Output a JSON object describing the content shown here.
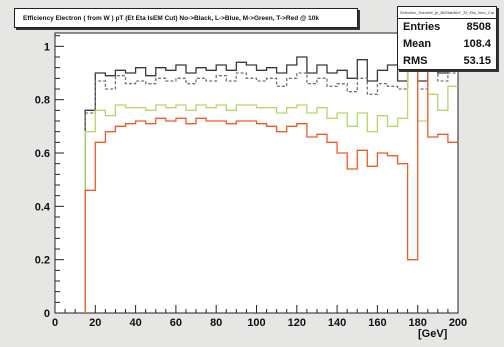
{
  "chart_data": {
    "type": "line",
    "style": "step-histogram",
    "title": "Efficiency Electron ( from W ) pT (Et Eta IsEM Cut) No->Black, L->Blue, M->Green, T->Red @ 10k",
    "xlabel": "[GeV]",
    "ylabel": "",
    "xlim": [
      0,
      200
    ],
    "ylim": [
      0,
      1.05
    ],
    "x_ticks": [
      0,
      20,
      40,
      60,
      80,
      100,
      120,
      140,
      160,
      180,
      200
    ],
    "y_ticks": [
      0,
      0.2,
      0.4,
      0.6,
      0.8,
      1
    ],
    "bin_width": 5,
    "grid": false,
    "x": [
      15,
      20,
      25,
      30,
      35,
      40,
      45,
      50,
      55,
      60,
      65,
      70,
      75,
      80,
      85,
      90,
      95,
      100,
      105,
      110,
      115,
      120,
      125,
      130,
      135,
      140,
      145,
      150,
      155,
      160,
      165,
      170,
      175,
      180,
      185,
      190,
      195
    ],
    "series": [
      {
        "color": "#3a3a3a",
        "dash": "",
        "values": [
          0.76,
          0.9,
          0.89,
          0.91,
          0.9,
          0.92,
          0.89,
          0.92,
          0.91,
          0.93,
          0.9,
          0.92,
          0.91,
          0.93,
          0.91,
          0.94,
          0.93,
          0.91,
          0.92,
          0.9,
          0.93,
          0.96,
          0.9,
          0.93,
          0.9,
          0.91,
          0.88,
          0.95,
          0.87,
          0.91,
          0.93,
          0.87,
          0.97,
          0.87,
          0.95,
          0.9,
          0.92
        ]
      },
      {
        "color": "#6e7380",
        "dash": "3,2",
        "values": [
          0.75,
          0.87,
          0.84,
          0.89,
          0.86,
          0.87,
          0.86,
          0.88,
          0.87,
          0.88,
          0.86,
          0.88,
          0.87,
          0.89,
          0.87,
          0.9,
          0.88,
          0.87,
          0.88,
          0.85,
          0.88,
          0.9,
          0.86,
          0.88,
          0.85,
          0.86,
          0.83,
          0.88,
          0.82,
          0.86,
          0.85,
          0.84,
          0.93,
          0.84,
          0.93,
          0.87,
          0.9
        ]
      },
      {
        "color": "#b6d66a",
        "dash": "",
        "values": [
          0.68,
          0.76,
          0.74,
          0.78,
          0.77,
          0.77,
          0.76,
          0.78,
          0.77,
          0.78,
          0.76,
          0.78,
          0.77,
          0.78,
          0.76,
          0.78,
          0.78,
          0.77,
          0.77,
          0.75,
          0.77,
          0.78,
          0.75,
          0.77,
          0.73,
          0.75,
          0.7,
          0.75,
          0.68,
          0.74,
          0.7,
          0.73,
          0.94,
          0.72,
          0.82,
          0.76,
          0.85
        ]
      },
      {
        "color": "#f05a28",
        "dash": "",
        "values": [
          0.46,
          0.64,
          0.68,
          0.7,
          0.71,
          0.72,
          0.71,
          0.73,
          0.72,
          0.73,
          0.71,
          0.73,
          0.72,
          0.72,
          0.71,
          0.72,
          0.72,
          0.71,
          0.7,
          0.68,
          0.7,
          0.71,
          0.66,
          0.67,
          0.64,
          0.6,
          0.54,
          0.61,
          0.55,
          0.6,
          0.59,
          0.56,
          0.2,
          0.95,
          0.66,
          0.67,
          0.64
        ]
      }
    ],
    "stats": {
      "name": "Selection_SomeW_pt_BitStabNbY_Et_Eta_Veto_Cut",
      "entries_label": "Entries",
      "entries": "8508",
      "mean_label": "Mean",
      "mean": "108.4",
      "rms_label": "RMS",
      "rms": "53.15"
    }
  }
}
